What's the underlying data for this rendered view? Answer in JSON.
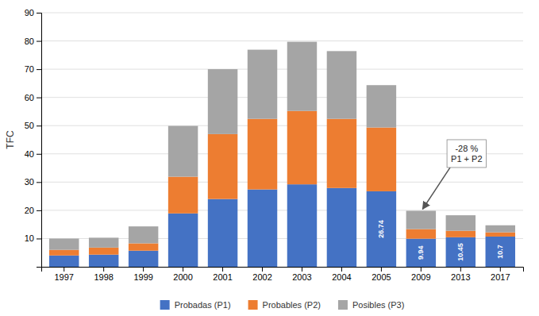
{
  "chart_data": {
    "type": "bar",
    "stacked": true,
    "ylabel": "TFC",
    "categories": [
      "1997",
      "1998",
      "1999",
      "2000",
      "2001",
      "2002",
      "2003",
      "2004",
      "2005",
      "2009",
      "2013",
      "2017"
    ],
    "series": [
      {
        "name": "Probadas (P1)",
        "color": "#4472C4",
        "values": [
          4.0,
          4.3,
          5.7,
          18.9,
          24.0,
          27.4,
          29.2,
          27.9,
          26.74,
          9.94,
          10.45,
          10.7
        ],
        "value_labels": [
          null,
          null,
          null,
          null,
          null,
          null,
          null,
          null,
          "26.74",
          "9.94",
          "10.45",
          "10.7"
        ]
      },
      {
        "name": "Probables (P2)",
        "color": "#ED7D31",
        "values": [
          2.0,
          2.5,
          2.6,
          13.0,
          23.0,
          25.0,
          26.0,
          24.5,
          22.6,
          3.4,
          2.3,
          1.5
        ]
      },
      {
        "name": "Posibles (P3)",
        "color": "#A5A5A5",
        "values": [
          4.0,
          3.5,
          6.0,
          18.0,
          23.0,
          24.5,
          24.5,
          24.0,
          15.0,
          6.5,
          5.5,
          2.5
        ]
      }
    ],
    "ylim": [
      0,
      90
    ],
    "yticks": [
      10,
      20,
      30,
      40,
      50,
      60,
      70,
      80,
      90
    ],
    "grid": true,
    "legend": "bottom",
    "annotations": [
      {
        "text": "-28 %\nP1 + P2",
        "x": "2009"
      }
    ]
  }
}
